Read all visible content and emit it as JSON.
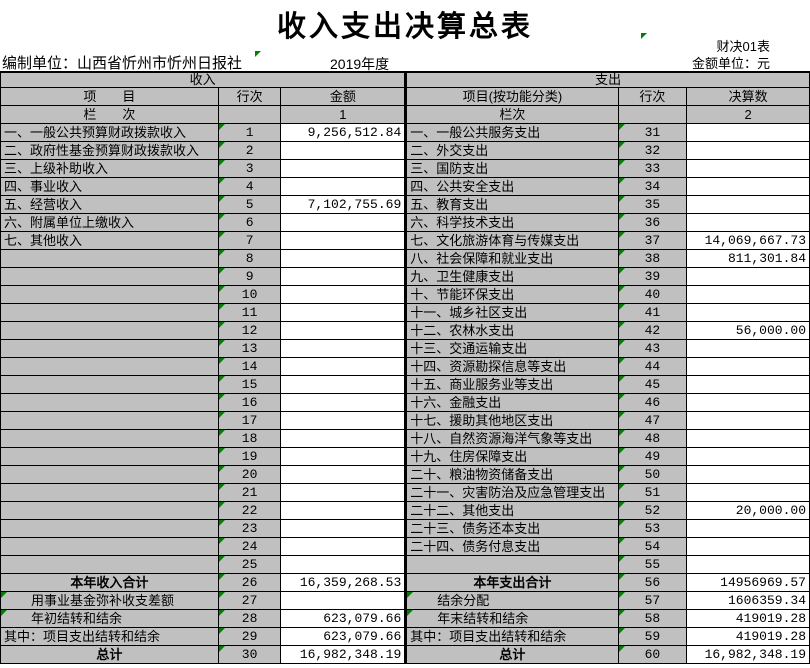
{
  "title": "收入支出决算总表",
  "header": {
    "form_code": "财决01表",
    "unit_label": "金额单位：元",
    "prepared_by": "编制单位：山西省忻州市忻州日报社",
    "year": "2019年度"
  },
  "colors": {
    "cell_gray": "#c0c0c0",
    "marker_green": "#008000",
    "border": "#000000"
  },
  "table": {
    "left": {
      "section": "收入",
      "headers": {
        "item": "项　　目",
        "line": "行次",
        "amount": "金额"
      },
      "index_row": {
        "item": "栏　　次",
        "line": "",
        "amount": "1"
      },
      "rows": [
        {
          "item": "一、一般公共预算财政拨款收入",
          "line": "1",
          "amount": "9,256,512.84"
        },
        {
          "item": "二、政府性基金预算财政拨款收入",
          "line": "2",
          "amount": ""
        },
        {
          "item": "三、上级补助收入",
          "line": "3",
          "amount": ""
        },
        {
          "item": "四、事业收入",
          "line": "4",
          "amount": ""
        },
        {
          "item": "五、经营收入",
          "line": "5",
          "amount": "7,102,755.69"
        },
        {
          "item": "六、附属单位上缴收入",
          "line": "6",
          "amount": ""
        },
        {
          "item": "七、其他收入",
          "line": "7",
          "amount": ""
        },
        {
          "item": "",
          "line": "8",
          "amount": ""
        },
        {
          "item": "",
          "line": "9",
          "amount": ""
        },
        {
          "item": "",
          "line": "10",
          "amount": ""
        },
        {
          "item": "",
          "line": "11",
          "amount": ""
        },
        {
          "item": "",
          "line": "12",
          "amount": ""
        },
        {
          "item": "",
          "line": "13",
          "amount": ""
        },
        {
          "item": "",
          "line": "14",
          "amount": ""
        },
        {
          "item": "",
          "line": "15",
          "amount": ""
        },
        {
          "item": "",
          "line": "16",
          "amount": ""
        },
        {
          "item": "",
          "line": "17",
          "amount": ""
        },
        {
          "item": "",
          "line": "18",
          "amount": ""
        },
        {
          "item": "",
          "line": "19",
          "amount": ""
        },
        {
          "item": "",
          "line": "20",
          "amount": ""
        },
        {
          "item": "",
          "line": "21",
          "amount": ""
        },
        {
          "item": "",
          "line": "22",
          "amount": ""
        },
        {
          "item": "",
          "line": "23",
          "amount": ""
        },
        {
          "item": "",
          "line": "24",
          "amount": ""
        },
        {
          "item": "",
          "line": "25",
          "amount": ""
        },
        {
          "item": "本年收入合计",
          "line": "26",
          "amount": "16,359,268.53",
          "style": "total"
        },
        {
          "item": "用事业基金弥补收支差额",
          "line": "27",
          "amount": "",
          "style": "indent",
          "item_marker": true
        },
        {
          "item": "年初结转和结余",
          "line": "28",
          "amount": "623,079.66",
          "style": "indent",
          "item_marker": true
        },
        {
          "item": "其中：项目支出结转和结余",
          "line": "29",
          "amount": "623,079.66"
        },
        {
          "item": "总计",
          "line": "30",
          "amount": "16,982,348.19",
          "style": "total"
        }
      ]
    },
    "right": {
      "section": "支出",
      "headers": {
        "item": "项目(按功能分类)",
        "line": "行次",
        "amount": "决算数"
      },
      "index_row": {
        "item": "栏次",
        "line": "",
        "amount": "2"
      },
      "rows": [
        {
          "item": "一、一般公共服务支出",
          "line": "31",
          "amount": ""
        },
        {
          "item": "二、外交支出",
          "line": "32",
          "amount": ""
        },
        {
          "item": "三、国防支出",
          "line": "33",
          "amount": ""
        },
        {
          "item": "四、公共安全支出",
          "line": "34",
          "amount": ""
        },
        {
          "item": "五、教育支出",
          "line": "35",
          "amount": ""
        },
        {
          "item": "六、科学技术支出",
          "line": "36",
          "amount": ""
        },
        {
          "item": "七、文化旅游体育与传媒支出",
          "line": "37",
          "amount": "14,069,667.73"
        },
        {
          "item": "八、社会保障和就业支出",
          "line": "38",
          "amount": "811,301.84"
        },
        {
          "item": "九、卫生健康支出",
          "line": "39",
          "amount": ""
        },
        {
          "item": "十、节能环保支出",
          "line": "40",
          "amount": ""
        },
        {
          "item": "十一、城乡社区支出",
          "line": "41",
          "amount": ""
        },
        {
          "item": "十二、农林水支出",
          "line": "42",
          "amount": "56,000.00"
        },
        {
          "item": "十三、交通运输支出",
          "line": "43",
          "amount": ""
        },
        {
          "item": "十四、资源勘探信息等支出",
          "line": "44",
          "amount": ""
        },
        {
          "item": "十五、商业服务业等支出",
          "line": "45",
          "amount": ""
        },
        {
          "item": "十六、金融支出",
          "line": "46",
          "amount": ""
        },
        {
          "item": "十七、援助其他地区支出",
          "line": "47",
          "amount": ""
        },
        {
          "item": "十八、自然资源海洋气象等支出",
          "line": "48",
          "amount": ""
        },
        {
          "item": "十九、住房保障支出",
          "line": "49",
          "amount": ""
        },
        {
          "item": "二十、粮油物资储备支出",
          "line": "50",
          "amount": ""
        },
        {
          "item": "二十一、灾害防治及应急管理支出",
          "line": "51",
          "amount": ""
        },
        {
          "item": "二十二、其他支出",
          "line": "52",
          "amount": "20,000.00"
        },
        {
          "item": "二十三、债务还本支出",
          "line": "53",
          "amount": ""
        },
        {
          "item": "二十四、债务付息支出",
          "line": "54",
          "amount": ""
        },
        {
          "item": "",
          "line": "55",
          "amount": ""
        },
        {
          "item": "本年支出合计",
          "line": "56",
          "amount": "14956969.57",
          "style": "total"
        },
        {
          "item": "结余分配",
          "line": "57",
          "amount": "1606359.34",
          "style": "indent",
          "item_marker": true
        },
        {
          "item": "年末结转和结余",
          "line": "58",
          "amount": "419019.28",
          "style": "indent",
          "item_marker": true
        },
        {
          "item": "其中：项目支出结转和结余",
          "line": "59",
          "amount": "419019.28"
        },
        {
          "item": "总计",
          "line": "60",
          "amount": "16,982,348.19",
          "style": "total"
        }
      ]
    }
  }
}
